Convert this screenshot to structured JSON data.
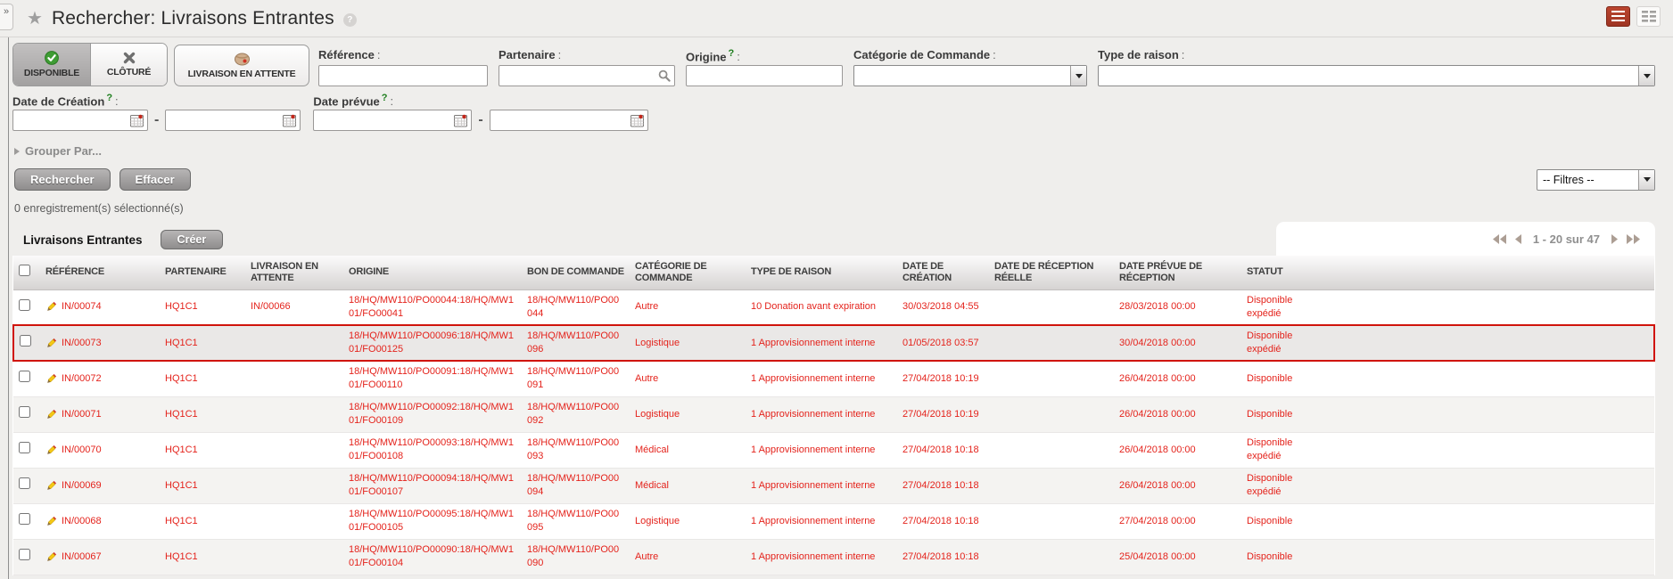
{
  "page": {
    "expander": "»",
    "title": "Rechercher: Livraisons Entrantes",
    "title_help": "?"
  },
  "filters": {
    "tabs": [
      {
        "label": "DISPONIBLE",
        "icon": "check-circle-icon",
        "selected": true
      },
      {
        "label": "CLÔTURÉ",
        "icon": "x-icon",
        "selected": false
      },
      {
        "label": "LIVRAISON EN ATTENTE",
        "icon": "package-icon",
        "selected": false
      }
    ],
    "fields": {
      "reference": {
        "label": "Référence",
        "colon": ":"
      },
      "partner": {
        "label": "Partenaire",
        "colon": ":"
      },
      "origin": {
        "label": "Origine",
        "help": "?",
        "colon": ":"
      },
      "order_category": {
        "label": "Catégorie de Commande",
        "colon": ":"
      },
      "reason_type": {
        "label": "Type de raison",
        "colon": ":"
      }
    },
    "dates": {
      "created": {
        "label": "Date de Création",
        "help": "?",
        "colon": ":"
      },
      "expected": {
        "label": "Date prévue",
        "help": "?",
        "colon": ":"
      },
      "separator": "-"
    },
    "group_by": "Grouper Par...",
    "search_button": "Rechercher",
    "clear_button": "Effacer",
    "filters_dropdown": "-- Filtres --"
  },
  "selection_status": "0 enregistrement(s) sélectionné(s)",
  "list": {
    "title": "Livraisons Entrantes",
    "create_button": "Créer",
    "pagination": {
      "label": "1 - 20 sur 47"
    },
    "columns": [
      "RÉFÉRENCE",
      "PARTENAIRE",
      "LIVRAISON EN ATTENTE",
      "ORIGINE",
      "BON DE COMMANDE",
      "CATÉGORIE DE COMMANDE",
      "TYPE DE RAISON",
      "DATE DE CRÉATION",
      "DATE DE RÉCEPTION RÉELLE",
      "DATE PRÉVUE DE RÉCEPTION",
      "STATUT"
    ],
    "row_keys": [
      "reference",
      "partner",
      "pending_shipment",
      "origin",
      "purchase_order",
      "order_category",
      "reason_type",
      "date_created",
      "actual_receipt_date",
      "expected_receipt_date",
      "status"
    ],
    "rows": [
      {
        "reference": "IN/00074",
        "partner": "HQ1C1",
        "pending_shipment": "IN/00066",
        "origin": "18/HQ/MW110/PO00044:18/HQ/MW101/FO00041",
        "purchase_order": "18/HQ/MW110/PO00044",
        "order_category": "Autre",
        "reason_type": "10 Donation avant expiration",
        "date_created": "30/03/2018 04:55",
        "actual_receipt_date": "",
        "expected_receipt_date": "28/03/2018 00:00",
        "status": "Disponible expédié",
        "highlighted": false
      },
      {
        "reference": "IN/00073",
        "partner": "HQ1C1",
        "pending_shipment": "",
        "origin": "18/HQ/MW110/PO00096:18/HQ/MW101/FO00125",
        "purchase_order": "18/HQ/MW110/PO00096",
        "order_category": "Logistique",
        "reason_type": "1 Approvisionnement interne",
        "date_created": "01/05/2018 03:57",
        "actual_receipt_date": "",
        "expected_receipt_date": "30/04/2018 00:00",
        "status": "Disponible expédié",
        "highlighted": true
      },
      {
        "reference": "IN/00072",
        "partner": "HQ1C1",
        "pending_shipment": "",
        "origin": "18/HQ/MW110/PO00091:18/HQ/MW101/FO00110",
        "purchase_order": "18/HQ/MW110/PO00091",
        "order_category": "Autre",
        "reason_type": "1 Approvisionnement interne",
        "date_created": "27/04/2018 10:19",
        "actual_receipt_date": "",
        "expected_receipt_date": "26/04/2018 00:00",
        "status": "Disponible",
        "highlighted": false
      },
      {
        "reference": "IN/00071",
        "partner": "HQ1C1",
        "pending_shipment": "",
        "origin": "18/HQ/MW110/PO00092:18/HQ/MW101/FO00109",
        "purchase_order": "18/HQ/MW110/PO00092",
        "order_category": "Logistique",
        "reason_type": "1 Approvisionnement interne",
        "date_created": "27/04/2018 10:19",
        "actual_receipt_date": "",
        "expected_receipt_date": "26/04/2018 00:00",
        "status": "Disponible",
        "highlighted": false
      },
      {
        "reference": "IN/00070",
        "partner": "HQ1C1",
        "pending_shipment": "",
        "origin": "18/HQ/MW110/PO00093:18/HQ/MW101/FO00108",
        "purchase_order": "18/HQ/MW110/PO00093",
        "order_category": "Médical",
        "reason_type": "1 Approvisionnement interne",
        "date_created": "27/04/2018 10:18",
        "actual_receipt_date": "",
        "expected_receipt_date": "26/04/2018 00:00",
        "status": "Disponible expédié",
        "highlighted": false
      },
      {
        "reference": "IN/00069",
        "partner": "HQ1C1",
        "pending_shipment": "",
        "origin": "18/HQ/MW110/PO00094:18/HQ/MW101/FO00107",
        "purchase_order": "18/HQ/MW110/PO00094",
        "order_category": "Médical",
        "reason_type": "1 Approvisionnement interne",
        "date_created": "27/04/2018 10:18",
        "actual_receipt_date": "",
        "expected_receipt_date": "26/04/2018 00:00",
        "status": "Disponible expédié",
        "highlighted": false
      },
      {
        "reference": "IN/00068",
        "partner": "HQ1C1",
        "pending_shipment": "",
        "origin": "18/HQ/MW110/PO00095:18/HQ/MW101/FO00105",
        "purchase_order": "18/HQ/MW110/PO00095",
        "order_category": "Logistique",
        "reason_type": "1 Approvisionnement interne",
        "date_created": "27/04/2018 10:18",
        "actual_receipt_date": "",
        "expected_receipt_date": "27/04/2018 00:00",
        "status": "Disponible",
        "highlighted": false
      },
      {
        "reference": "IN/00067",
        "partner": "HQ1C1",
        "pending_shipment": "",
        "origin": "18/HQ/MW110/PO00090:18/HQ/MW101/FO00104",
        "purchase_order": "18/HQ/MW110/PO00090",
        "order_category": "Autre",
        "reason_type": "1 Approvisionnement interne",
        "date_created": "27/04/2018 10:18",
        "actual_receipt_date": "",
        "expected_receipt_date": "25/04/2018 00:00",
        "status": "Disponible",
        "highlighted": false
      }
    ]
  }
}
